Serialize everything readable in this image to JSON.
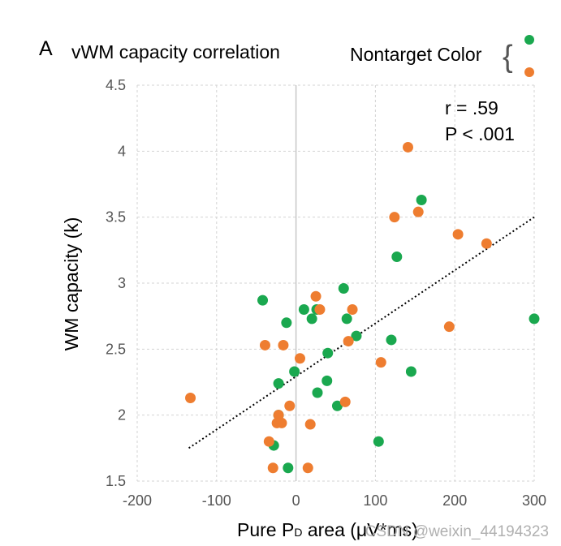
{
  "panel_label": "A",
  "legend": {
    "title": "Nontarget Color",
    "brace": "{"
  },
  "stats": {
    "r_text": "r = .59",
    "p_text": "P < .001"
  },
  "watermark": "CSDN @weixin_44194323",
  "colors": {
    "green": "#1aa84f",
    "orange": "#ee7d30",
    "grid": "#d3d3d3",
    "zero_line": "#c8c8c8",
    "trend": "#000000"
  },
  "chart_data": {
    "type": "scatter",
    "title": "vWM capacity correlation",
    "xlabel": "Pure P",
    "xlabel_sub": "D",
    "xlabel_rest": " area (μV*ms)",
    "ylabel": "WM capacity (k)",
    "xlim": [
      -200,
      300
    ],
    "ylim": [
      1.5,
      4.5
    ],
    "xticks": [
      -200,
      -100,
      0,
      100,
      200,
      300
    ],
    "xtick_labels": [
      "-200",
      "-100",
      "0",
      "100",
      "200",
      "300"
    ],
    "yticks": [
      1.5,
      2,
      2.5,
      3,
      3.5,
      4,
      4.5
    ],
    "ytick_labels": [
      "1.5",
      "2",
      "2.5",
      "3",
      "3.5",
      "4",
      "4.5"
    ],
    "grid": true,
    "legend_position": "top-right",
    "trendline": {
      "style": "dotted",
      "x": [
        -135,
        300
      ],
      "y": [
        1.75,
        3.5
      ]
    },
    "series": [
      {
        "name": "green",
        "color_key": "green",
        "points": [
          [
            -42,
            2.87
          ],
          [
            -12,
            2.7
          ],
          [
            10,
            2.8
          ],
          [
            26,
            2.8
          ],
          [
            20,
            2.73
          ],
          [
            60,
            2.96
          ],
          [
            64,
            2.73
          ],
          [
            76,
            2.6
          ],
          [
            40,
            2.47
          ],
          [
            -2,
            2.33
          ],
          [
            -22,
            2.24
          ],
          [
            27,
            2.17
          ],
          [
            39,
            2.26
          ],
          [
            52,
            2.07
          ],
          [
            -22,
            2.0
          ],
          [
            -28,
            1.77
          ],
          [
            -10,
            1.6
          ],
          [
            104,
            1.8
          ],
          [
            120,
            2.57
          ],
          [
            145,
            2.33
          ],
          [
            127,
            3.2
          ],
          [
            158,
            3.63
          ],
          [
            300,
            2.73
          ]
        ]
      },
      {
        "name": "orange",
        "color_key": "orange",
        "points": [
          [
            -133,
            2.13
          ],
          [
            -39,
            2.53
          ],
          [
            -16,
            2.53
          ],
          [
            5,
            2.43
          ],
          [
            25,
            2.9
          ],
          [
            30,
            2.8
          ],
          [
            71,
            2.8
          ],
          [
            66,
            2.56
          ],
          [
            -8,
            2.07
          ],
          [
            -24,
            1.94
          ],
          [
            -18,
            1.94
          ],
          [
            18,
            1.93
          ],
          [
            -22,
            2.0
          ],
          [
            -34,
            1.8
          ],
          [
            -29,
            1.6
          ],
          [
            15,
            1.6
          ],
          [
            62,
            2.1
          ],
          [
            107,
            2.4
          ],
          [
            193,
            2.67
          ],
          [
            124,
            3.5
          ],
          [
            154,
            3.54
          ],
          [
            204,
            3.37
          ],
          [
            240,
            3.3
          ],
          [
            141,
            4.03
          ]
        ]
      }
    ]
  }
}
